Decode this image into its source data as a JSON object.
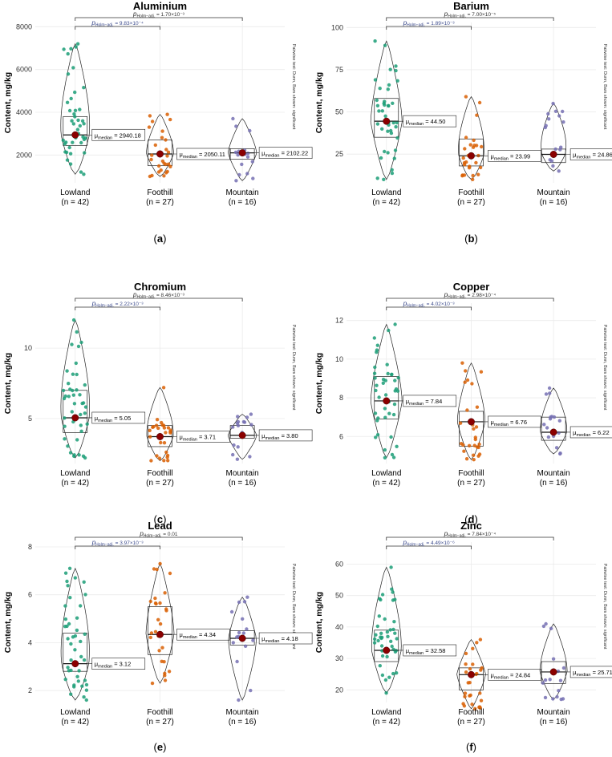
{
  "chart_data": [
    {
      "type": "violin",
      "panel": "(a)",
      "title": "Aluminium",
      "ylabel": "Content, mg/kg",
      "ylim": [
        700,
        8200
      ],
      "yticks": [
        2000,
        4000,
        6000,
        8000
      ],
      "yticklabels": [
        "2000",
        "4000",
        "6000",
        "8000"
      ],
      "side_note": "Pairwise test: Dunn, Bars shown: significant",
      "groups": [
        {
          "name": "Lowland",
          "n_label": "(n = 42)",
          "median": 2940.18,
          "median_label": "= 2940.18",
          "q1": 2450,
          "q3": 3800,
          "min": 1100,
          "max": 7200,
          "color": "#1b9e77"
        },
        {
          "name": "Foothill",
          "n_label": "(n = 27)",
          "median": 2050.11,
          "median_label": "= 2050.11",
          "q1": 1500,
          "q3": 2700,
          "min": 1000,
          "max": 3900,
          "color": "#d95f02"
        },
        {
          "name": "Mountain",
          "n_label": "(n = 16)",
          "median": 2102.22,
          "median_label": "= 2102.22",
          "q1": 1800,
          "q3": 2300,
          "min": 800,
          "max": 3700,
          "color": "#7570b3"
        }
      ],
      "comparisons": [
        {
          "from": 0,
          "to": 1,
          "label": "= 9.83×10⁻⁴",
          "level": 0
        },
        {
          "from": 0,
          "to": 2,
          "label": "= 1.70×10⁻³",
          "level": 1
        }
      ]
    },
    {
      "type": "violin",
      "panel": "(b)",
      "title": "Barium",
      "ylabel": "Content, mg/kg",
      "ylim": [
        8,
        103
      ],
      "yticks": [
        25,
        50,
        75,
        100
      ],
      "yticklabels": [
        "25",
        "50",
        "75",
        "100"
      ],
      "side_note": "Pairwise test: Dunn, Bars shown: significant",
      "groups": [
        {
          "name": "Lowland",
          "n_label": "(n = 42)",
          "median": 44.5,
          "median_label": "= 44.50",
          "q1": 35,
          "q3": 58,
          "min": 10,
          "max": 92,
          "color": "#1b9e77"
        },
        {
          "name": "Foothill",
          "n_label": "(n = 27)",
          "median": 23.99,
          "median_label": "= 23.99",
          "q1": 18,
          "q3": 34,
          "min": 10,
          "max": 59,
          "color": "#d95f02"
        },
        {
          "name": "Mountain",
          "n_label": "(n = 16)",
          "median": 24.86,
          "median_label": "= 24.86",
          "q1": 20,
          "q3": 28,
          "min": 15,
          "max": 55,
          "color": "#7570b3"
        }
      ],
      "comparisons": [
        {
          "from": 0,
          "to": 1,
          "label": "= 1.89×10⁻³",
          "level": 0
        },
        {
          "from": 0,
          "to": 2,
          "label": "= 7.00×10⁻⁵",
          "level": 1
        }
      ]
    },
    {
      "type": "violin",
      "panel": "(c)",
      "title": "Chromium",
      "ylabel": "Content, mg/kg",
      "ylim": [
        1.8,
        13.2
      ],
      "yticks": [
        5,
        10
      ],
      "yticklabels": [
        "5",
        "10"
      ],
      "side_note": "Pairwise test: Dunn, Bars shown: significant",
      "groups": [
        {
          "name": "Lowland",
          "n_label": "(n = 42)",
          "median": 5.05,
          "median_label": "= 5.05",
          "q1": 4.0,
          "q3": 7.0,
          "min": 2.2,
          "max": 12.0,
          "color": "#1b9e77"
        },
        {
          "name": "Foothill",
          "n_label": "(n = 27)",
          "median": 3.71,
          "median_label": "= 3.71",
          "q1": 3.0,
          "q3": 4.5,
          "min": 2.0,
          "max": 7.2,
          "color": "#d95f02"
        },
        {
          "name": "Mountain",
          "n_label": "(n = 16)",
          "median": 3.8,
          "median_label": "= 3.80",
          "q1": 3.6,
          "q3": 4.5,
          "min": 2.1,
          "max": 5.3,
          "color": "#7570b3"
        }
      ],
      "comparisons": [
        {
          "from": 0,
          "to": 1,
          "label": "= 2.22×10⁻³",
          "level": 0
        },
        {
          "from": 0,
          "to": 2,
          "label": "= 8.46×10⁻³",
          "level": 1
        }
      ]
    },
    {
      "type": "violin",
      "panel": "(d)",
      "title": "Copper",
      "ylabel": "Content, mg/kg",
      "ylim": [
        4.6,
        12.9
      ],
      "yticks": [
        6,
        8,
        10,
        12
      ],
      "yticklabels": [
        "6",
        "8",
        "10",
        "12"
      ],
      "side_note": "Pairwise test: Dunn, Bars shown: significant",
      "groups": [
        {
          "name": "Lowland",
          "n_label": "(n = 42)",
          "median": 7.84,
          "median_label": "= 7.84",
          "q1": 6.9,
          "q3": 9.1,
          "min": 4.9,
          "max": 11.8,
          "color": "#1b9e77"
        },
        {
          "name": "Foothill",
          "n_label": "(n = 27)",
          "median": 6.76,
          "median_label": "= 6.76",
          "q1": 5.5,
          "q3": 7.3,
          "min": 4.8,
          "max": 9.8,
          "color": "#d95f02"
        },
        {
          "name": "Mountain",
          "n_label": "(n = 16)",
          "median": 6.22,
          "median_label": "= 6.22",
          "q1": 5.8,
          "q3": 7.0,
          "min": 5.1,
          "max": 8.5,
          "color": "#7570b3"
        }
      ],
      "comparisons": [
        {
          "from": 0,
          "to": 1,
          "label": "= 4.02×10⁻³",
          "level": 0
        },
        {
          "from": 0,
          "to": 2,
          "label": "= 2.98×10⁻⁴",
          "level": 1
        }
      ]
    },
    {
      "type": "violin",
      "panel": "(e)",
      "title": "Lead",
      "ylabel": "Content, mg/kg",
      "ylim": [
        1.5,
        8.2
      ],
      "yticks": [
        2,
        4,
        6,
        8
      ],
      "yticklabels": [
        "2",
        "4",
        "6",
        "8"
      ],
      "side_note": "Pairwise test: Dunn, Bars shown: significant",
      "groups": [
        {
          "name": "Lowland",
          "n_label": "(n = 42)",
          "median": 3.12,
          "median_label": "= 3.12",
          "q1": 2.8,
          "q3": 4.4,
          "min": 1.6,
          "max": 7.1,
          "color": "#1b9e77"
        },
        {
          "name": "Foothill",
          "n_label": "(n = 27)",
          "median": 4.34,
          "median_label": "= 4.34",
          "q1": 3.5,
          "q3": 5.5,
          "min": 2.3,
          "max": 7.3,
          "color": "#d95f02"
        },
        {
          "name": "Mountain",
          "n_label": "(n = 16)",
          "median": 4.18,
          "median_label": "= 4.18",
          "q1": 3.9,
          "q3": 4.5,
          "min": 1.6,
          "max": 5.9,
          "color": "#7570b3"
        }
      ],
      "comparisons": [
        {
          "from": 0,
          "to": 1,
          "label": "= 3.97×10⁻³",
          "level": 0
        },
        {
          "from": 0,
          "to": 2,
          "label": "= 0.01",
          "level": 1
        }
      ]
    },
    {
      "type": "violin",
      "panel": "(f)",
      "title": "Zinc",
      "ylabel": "Content, mg/kg",
      "ylim": [
        16,
        67
      ],
      "yticks": [
        20,
        30,
        40,
        50,
        60
      ],
      "yticklabels": [
        "20",
        "30",
        "40",
        "50",
        "60"
      ],
      "side_note": "Pairwise test: Dunn, Bars shown: significant",
      "groups": [
        {
          "name": "Lowland",
          "n_label": "(n = 42)",
          "median": 32.58,
          "median_label": "= 32.58",
          "q1": 29,
          "q3": 39,
          "min": 19,
          "max": 59,
          "color": "#1b9e77"
        },
        {
          "name": "Foothill",
          "n_label": "(n = 27)",
          "median": 24.84,
          "median_label": "= 24.84",
          "q1": 20,
          "q3": 27,
          "min": 14,
          "max": 36,
          "color": "#d95f02"
        },
        {
          "name": "Mountain",
          "n_label": "(n = 16)",
          "median": 25.71,
          "median_label": "= 25.71",
          "q1": 22,
          "q3": 29,
          "min": 17,
          "max": 41,
          "color": "#7570b3"
        }
      ],
      "comparisons": [
        {
          "from": 0,
          "to": 1,
          "label": "= 4.49×10⁻⁶",
          "level": 0
        },
        {
          "from": 0,
          "to": 2,
          "label": "= 7.84×10⁻⁴",
          "level": 1
        }
      ]
    }
  ],
  "stat_labels": {
    "p_symbol": "p",
    "p_subscript": "Holm−adj.",
    "mu_symbol": "μ",
    "median_subscript": "median"
  },
  "colors": {
    "median_dot": "#8b0000",
    "bracket_lowland_foothill": "#3b4a8c"
  }
}
